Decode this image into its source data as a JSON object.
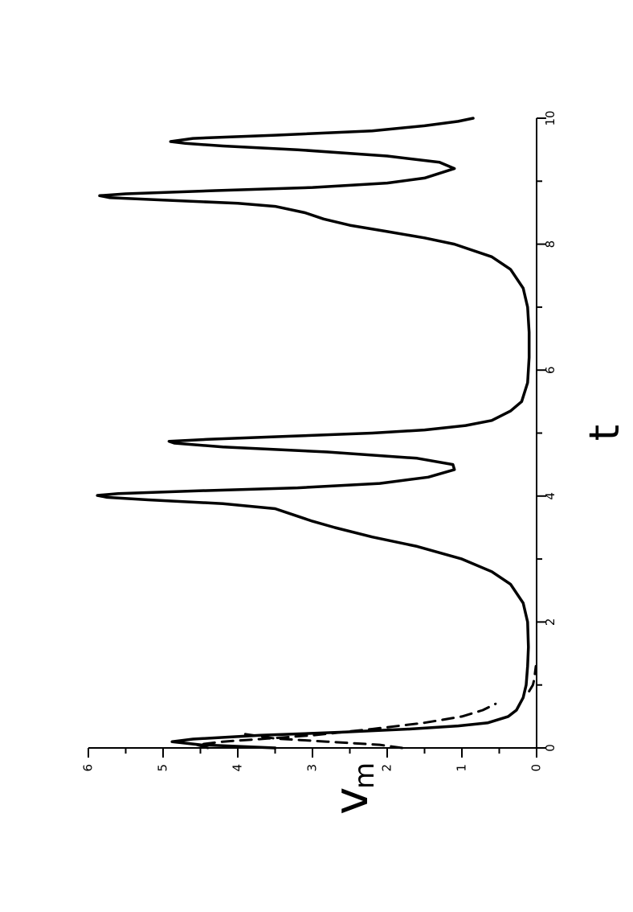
{
  "chart_data": {
    "type": "line",
    "orientation": "rotated 90 degrees counter-clockwise",
    "xlabel": "t",
    "ylabel": "v",
    "ylabel_subscript": "m",
    "xlim": [
      0,
      10
    ],
    "ylim": [
      0,
      6
    ],
    "x_ticks": [
      "0",
      "2",
      "4",
      "6",
      "8",
      "10"
    ],
    "y_ticks": [
      "0",
      "1",
      "2",
      "3",
      "4",
      "5",
      "6"
    ],
    "grid": false,
    "legend": "none",
    "series": [
      {
        "style": "solid",
        "color": "#000000",
        "points": [
          [
            0.0,
            3.5
          ],
          [
            0.05,
            4.5
          ],
          [
            0.1,
            4.88
          ],
          [
            0.14,
            4.6
          ],
          [
            0.2,
            3.7
          ],
          [
            0.25,
            2.6
          ],
          [
            0.3,
            1.7
          ],
          [
            0.35,
            1.05
          ],
          [
            0.4,
            0.65
          ],
          [
            0.5,
            0.38
          ],
          [
            0.6,
            0.27
          ],
          [
            0.8,
            0.18
          ],
          [
            1.0,
            0.14
          ],
          [
            1.3,
            0.12
          ],
          [
            1.6,
            0.11
          ],
          [
            2.0,
            0.12
          ],
          [
            2.3,
            0.18
          ],
          [
            2.6,
            0.35
          ],
          [
            2.8,
            0.6
          ],
          [
            3.0,
            1.0
          ],
          [
            3.2,
            1.6
          ],
          [
            3.35,
            2.2
          ],
          [
            3.5,
            2.7
          ],
          [
            3.6,
            3.0
          ],
          [
            3.7,
            3.25
          ],
          [
            3.8,
            3.5
          ],
          [
            3.88,
            4.2
          ],
          [
            3.94,
            5.2
          ],
          [
            3.98,
            5.75
          ],
          [
            4.01,
            5.88
          ],
          [
            4.04,
            5.6
          ],
          [
            4.08,
            4.6
          ],
          [
            4.13,
            3.2
          ],
          [
            4.2,
            2.1
          ],
          [
            4.3,
            1.45
          ],
          [
            4.42,
            1.1
          ],
          [
            4.5,
            1.12
          ],
          [
            4.6,
            1.6
          ],
          [
            4.7,
            2.8
          ],
          [
            4.78,
            4.2
          ],
          [
            4.84,
            4.85
          ],
          [
            4.87,
            4.92
          ],
          [
            4.9,
            4.4
          ],
          [
            4.95,
            3.3
          ],
          [
            5.0,
            2.2
          ],
          [
            5.05,
            1.5
          ],
          [
            5.12,
            0.95
          ],
          [
            5.2,
            0.6
          ],
          [
            5.35,
            0.35
          ],
          [
            5.5,
            0.2
          ],
          [
            5.8,
            0.12
          ],
          [
            6.2,
            0.1
          ],
          [
            6.6,
            0.1
          ],
          [
            7.0,
            0.12
          ],
          [
            7.3,
            0.18
          ],
          [
            7.6,
            0.35
          ],
          [
            7.8,
            0.6
          ],
          [
            8.0,
            1.1
          ],
          [
            8.1,
            1.5
          ],
          [
            8.2,
            2.0
          ],
          [
            8.3,
            2.5
          ],
          [
            8.4,
            2.85
          ],
          [
            8.5,
            3.1
          ],
          [
            8.6,
            3.5
          ],
          [
            8.65,
            4.0
          ],
          [
            8.7,
            5.0
          ],
          [
            8.74,
            5.72
          ],
          [
            8.77,
            5.85
          ],
          [
            8.8,
            5.5
          ],
          [
            8.85,
            4.3
          ],
          [
            8.9,
            3.0
          ],
          [
            8.97,
            2.0
          ],
          [
            9.05,
            1.5
          ],
          [
            9.2,
            1.1
          ],
          [
            9.3,
            1.3
          ],
          [
            9.4,
            2.0
          ],
          [
            9.5,
            3.2
          ],
          [
            9.56,
            4.2
          ],
          [
            9.6,
            4.7
          ],
          [
            9.63,
            4.9
          ],
          [
            9.68,
            4.6
          ],
          [
            9.73,
            3.5
          ],
          [
            9.8,
            2.2
          ],
          [
            9.88,
            1.5
          ],
          [
            9.95,
            1.05
          ],
          [
            10.0,
            0.85
          ]
        ]
      },
      {
        "style": "dashed",
        "color": "#000000",
        "points": [
          [
            0.0,
            4.4
          ],
          [
            0.05,
            4.55
          ],
          [
            0.1,
            4.2
          ],
          [
            0.15,
            3.6
          ],
          [
            0.2,
            3.0
          ],
          [
            0.3,
            2.2
          ],
          [
            0.4,
            1.5
          ],
          [
            0.5,
            1.0
          ],
          [
            0.6,
            0.72
          ],
          [
            0.7,
            0.55
          ]
        ]
      },
      {
        "style": "dashed",
        "color": "#000000",
        "points": [
          [
            0.0,
            1.8
          ],
          [
            0.05,
            2.1
          ],
          [
            0.1,
            2.8
          ],
          [
            0.15,
            3.5
          ],
          [
            0.22,
            3.9
          ]
        ]
      },
      {
        "style": "dashed",
        "color": "#000000",
        "points": [
          [
            0.9,
            0.1
          ],
          [
            1.0,
            0.05
          ],
          [
            1.1,
            0.03
          ],
          [
            1.2,
            0.02
          ],
          [
            1.3,
            0.01
          ]
        ]
      }
    ]
  }
}
